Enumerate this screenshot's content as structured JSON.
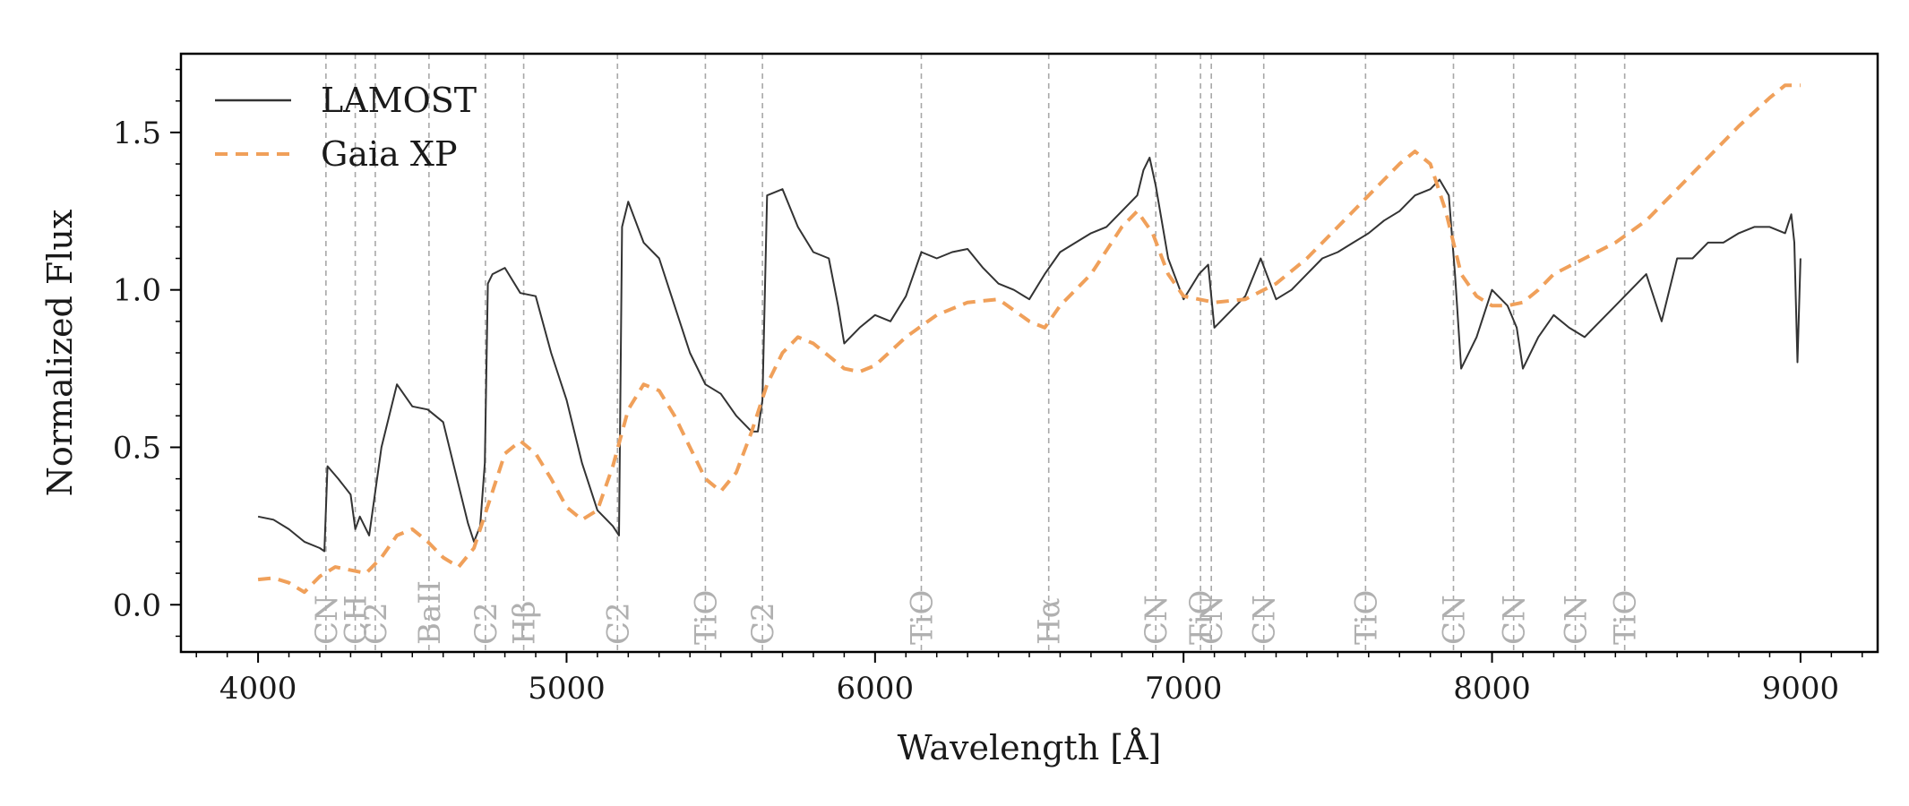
{
  "chart_data": {
    "type": "line",
    "xlabel": "Wavelength [Å]",
    "ylabel": "Normalized Flux",
    "xlim": [
      3750,
      9250
    ],
    "ylim": [
      -0.15,
      1.75
    ],
    "xticks": [
      4000,
      5000,
      6000,
      7000,
      8000,
      9000
    ],
    "xtick_labels": [
      "4000",
      "5000",
      "6000",
      "7000",
      "8000",
      "9000"
    ],
    "yticks": [
      0.0,
      0.5,
      1.0,
      1.5
    ],
    "ytick_labels": [
      "0.0",
      "0.5",
      "1.0",
      "1.5"
    ],
    "grid": false,
    "legend_position": "top-left",
    "series": [
      {
        "name": "LAMOST",
        "color": "#333333",
        "style": "solid",
        "x": [
          4000,
          4050,
          4100,
          4150,
          4200,
          4215,
          4225,
          4260,
          4300,
          4315,
          4330,
          4360,
          4400,
          4430,
          4450,
          4500,
          4550,
          4600,
          4650,
          4680,
          4700,
          4720,
          4735,
          4745,
          4760,
          4800,
          4850,
          4900,
          4950,
          5000,
          5050,
          5100,
          5150,
          5170,
          5180,
          5200,
          5250,
          5300,
          5350,
          5400,
          5450,
          5500,
          5550,
          5600,
          5620,
          5635,
          5650,
          5700,
          5750,
          5800,
          5850,
          5880,
          5900,
          5950,
          6000,
          6050,
          6100,
          6150,
          6200,
          6250,
          6300,
          6350,
          6400,
          6450,
          6500,
          6550,
          6600,
          6650,
          6700,
          6750,
          6800,
          6850,
          6870,
          6890,
          6910,
          6950,
          7000,
          7050,
          7080,
          7100,
          7150,
          7200,
          7250,
          7300,
          7350,
          7400,
          7450,
          7500,
          7550,
          7600,
          7650,
          7700,
          7750,
          7800,
          7830,
          7860,
          7880,
          7900,
          7950,
          8000,
          8050,
          8080,
          8100,
          8150,
          8200,
          8250,
          8300,
          8350,
          8400,
          8450,
          8500,
          8550,
          8600,
          8650,
          8700,
          8750,
          8800,
          8850,
          8900,
          8950,
          8970,
          8980,
          8990,
          9000
        ],
        "y": [
          0.28,
          0.27,
          0.24,
          0.2,
          0.18,
          0.17,
          0.44,
          0.4,
          0.35,
          0.24,
          0.28,
          0.22,
          0.5,
          0.62,
          0.7,
          0.63,
          0.62,
          0.58,
          0.38,
          0.26,
          0.2,
          0.25,
          0.45,
          1.02,
          1.05,
          1.07,
          0.99,
          0.98,
          0.8,
          0.65,
          0.45,
          0.3,
          0.25,
          0.22,
          1.2,
          1.28,
          1.15,
          1.1,
          0.95,
          0.8,
          0.7,
          0.67,
          0.6,
          0.55,
          0.55,
          0.65,
          1.3,
          1.32,
          1.2,
          1.12,
          1.1,
          0.95,
          0.83,
          0.88,
          0.92,
          0.9,
          0.98,
          1.12,
          1.1,
          1.12,
          1.13,
          1.07,
          1.02,
          1.0,
          0.97,
          1.05,
          1.12,
          1.15,
          1.18,
          1.2,
          1.25,
          1.3,
          1.38,
          1.42,
          1.33,
          1.1,
          0.97,
          1.05,
          1.08,
          0.88,
          0.93,
          0.98,
          1.1,
          0.97,
          1.0,
          1.05,
          1.1,
          1.12,
          1.15,
          1.18,
          1.22,
          1.25,
          1.3,
          1.32,
          1.35,
          1.3,
          1.05,
          0.75,
          0.85,
          1.0,
          0.95,
          0.88,
          0.75,
          0.85,
          0.92,
          0.88,
          0.85,
          0.9,
          0.95,
          1.0,
          1.05,
          0.9,
          1.1,
          1.1,
          1.15,
          1.15,
          1.18,
          1.2,
          1.2,
          1.18,
          1.24,
          1.15,
          0.77,
          1.1
        ]
      },
      {
        "name": "Gaia XP",
        "color": "#f0a05a",
        "style": "dashed",
        "x": [
          4000,
          4050,
          4100,
          4150,
          4200,
          4250,
          4300,
          4350,
          4400,
          4450,
          4500,
          4550,
          4600,
          4650,
          4700,
          4750,
          4800,
          4850,
          4900,
          4950,
          5000,
          5050,
          5100,
          5150,
          5200,
          5250,
          5300,
          5350,
          5400,
          5450,
          5500,
          5550,
          5600,
          5650,
          5700,
          5750,
          5800,
          5850,
          5900,
          5950,
          6000,
          6100,
          6200,
          6300,
          6400,
          6500,
          6550,
          6600,
          6700,
          6800,
          6850,
          6900,
          6950,
          7000,
          7100,
          7200,
          7300,
          7400,
          7500,
          7600,
          7700,
          7750,
          7800,
          7850,
          7900,
          7950,
          8000,
          8050,
          8100,
          8150,
          8200,
          8300,
          8400,
          8500,
          8600,
          8700,
          8800,
          8900,
          8950,
          9000
        ],
        "y": [
          0.08,
          0.085,
          0.07,
          0.04,
          0.09,
          0.12,
          0.11,
          0.1,
          0.15,
          0.22,
          0.24,
          0.2,
          0.15,
          0.12,
          0.18,
          0.33,
          0.48,
          0.52,
          0.48,
          0.4,
          0.31,
          0.27,
          0.3,
          0.44,
          0.62,
          0.7,
          0.68,
          0.6,
          0.5,
          0.4,
          0.36,
          0.42,
          0.55,
          0.7,
          0.8,
          0.85,
          0.83,
          0.79,
          0.75,
          0.74,
          0.76,
          0.85,
          0.92,
          0.96,
          0.97,
          0.9,
          0.88,
          0.95,
          1.05,
          1.2,
          1.25,
          1.18,
          1.05,
          0.98,
          0.96,
          0.97,
          1.02,
          1.1,
          1.2,
          1.3,
          1.4,
          1.44,
          1.4,
          1.25,
          1.05,
          0.98,
          0.95,
          0.95,
          0.96,
          1.0,
          1.05,
          1.1,
          1.15,
          1.22,
          1.32,
          1.42,
          1.52,
          1.61,
          1.65,
          1.65
        ]
      }
    ],
    "vertical_lines": [
      {
        "x": 4220,
        "label": "CN"
      },
      {
        "x": 4315,
        "label": "CH"
      },
      {
        "x": 4380,
        "label": "C2"
      },
      {
        "x": 4554,
        "label": "BaII"
      },
      {
        "x": 4737,
        "label": "C2"
      },
      {
        "x": 4861,
        "label": "Hβ"
      },
      {
        "x": 5165,
        "label": "C2"
      },
      {
        "x": 5450,
        "label": "TiO"
      },
      {
        "x": 5635,
        "label": "C2"
      },
      {
        "x": 6150,
        "label": "TiO"
      },
      {
        "x": 6563,
        "label": "Hα"
      },
      {
        "x": 6910,
        "label": "CN"
      },
      {
        "x": 7055,
        "label": "TiO"
      },
      {
        "x": 7090,
        "label": "CN"
      },
      {
        "x": 7260,
        "label": "CN"
      },
      {
        "x": 7590,
        "label": "TiO"
      },
      {
        "x": 7875,
        "label": "CN"
      },
      {
        "x": 8070,
        "label": "CN"
      },
      {
        "x": 8270,
        "label": "CN"
      },
      {
        "x": 8430,
        "label": "TiO"
      }
    ]
  }
}
